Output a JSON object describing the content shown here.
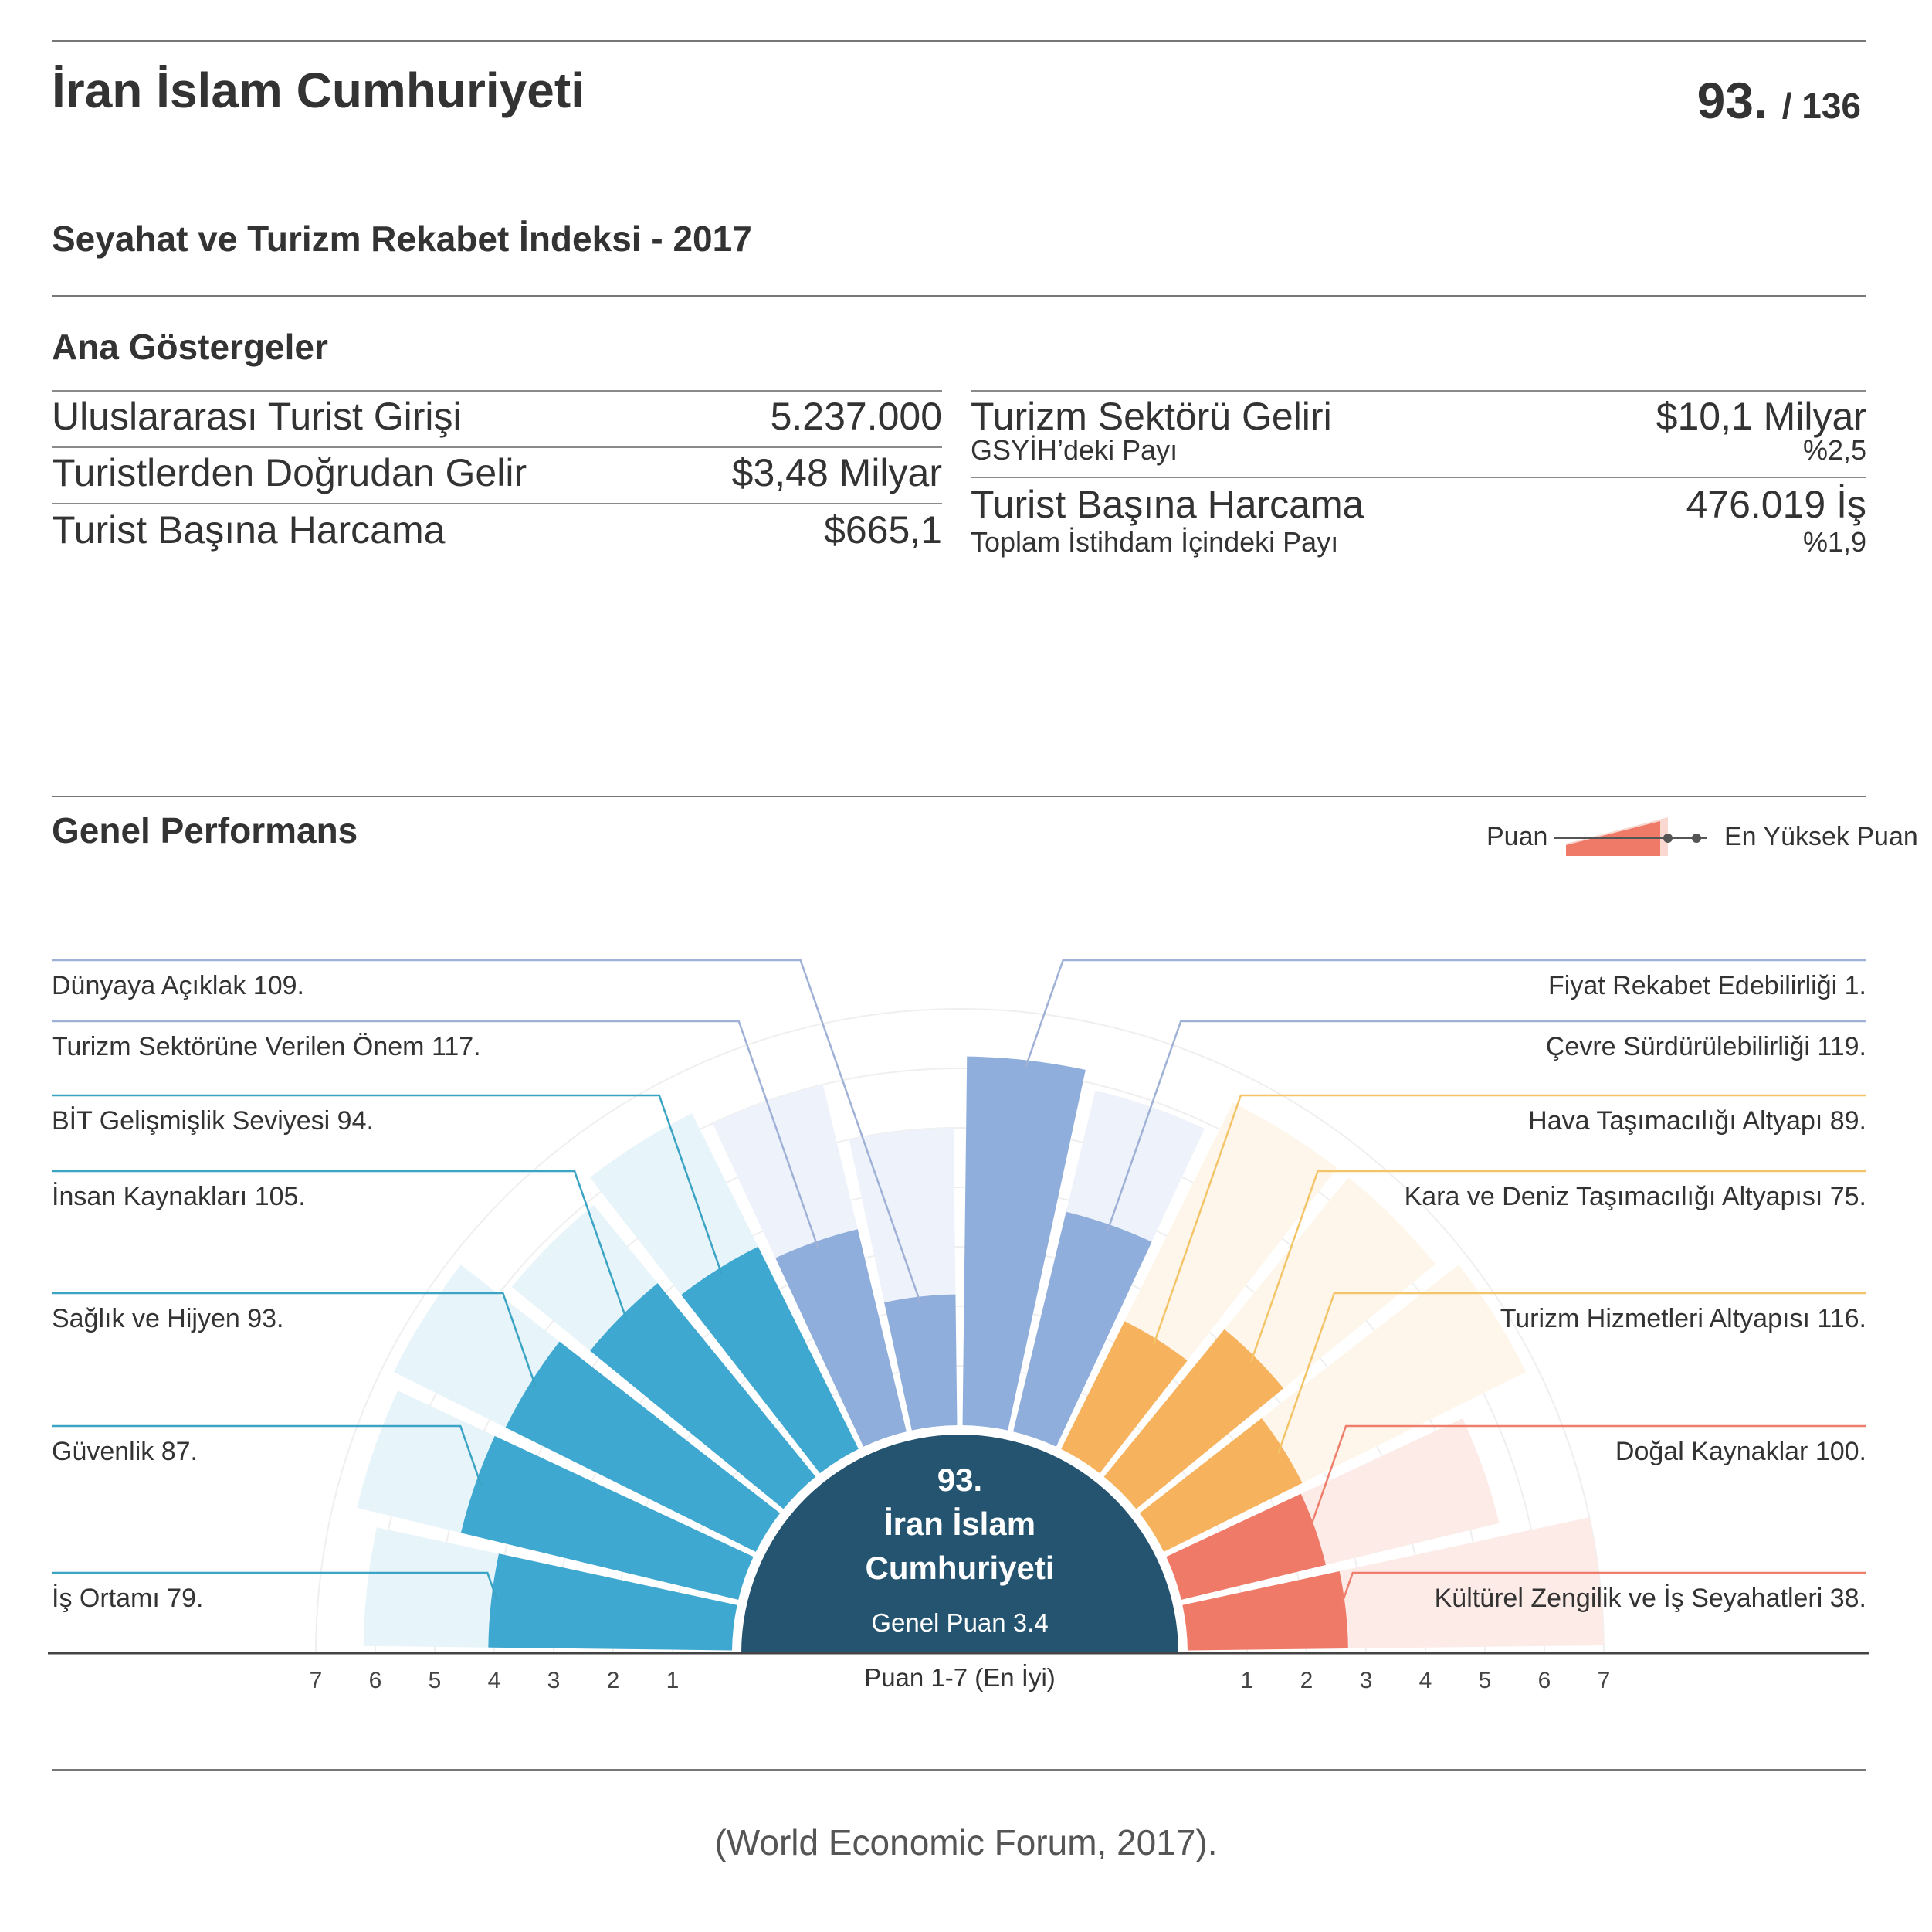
{
  "header": {
    "country": "İran İslam Cumhuriyeti",
    "rank": "93.",
    "rank_total": "/ 136",
    "index_title": "Seyahat ve Turizm Rekabet İndeksi - 2017"
  },
  "key_indicators": {
    "title": "Ana Göstergeler",
    "left": [
      {
        "label": "Uluslararası Turist Girişi",
        "value": "5.237.000"
      },
      {
        "label": "Turistlerden Doğrudan Gelir",
        "value": "$3,48 Milyar"
      },
      {
        "label": "Turist Başına Harcama",
        "value": "$665,1"
      }
    ],
    "right": [
      {
        "label": "Turizm Sektörü Geliri",
        "value": "$10,1 Milyar",
        "sub_label": "GSYİH’deki Payı",
        "sub_value": "%2,5"
      },
      {
        "label": "Turist Başına Harcama",
        "value": "476.019 İş",
        "sub_label": "Toplam İstihdam İçindeki Payı",
        "sub_value": "%1,9"
      }
    ]
  },
  "performance": {
    "title": "Genel Performans",
    "legend_score": "Puan",
    "legend_max": "En Yüksek Puan"
  },
  "chart_data": {
    "type": "radial-bar",
    "scale_min": 1,
    "scale_max": 7,
    "axis_ticks": [
      "7",
      "6",
      "5",
      "4",
      "3",
      "2",
      "1",
      "1",
      "2",
      "3",
      "4",
      "5",
      "6",
      "7"
    ],
    "axis_label": "Puan 1-7 (En İyi)",
    "center": {
      "rank": "93.",
      "name_line1": "İran İslam",
      "name_line2": "Cumhuriyeti",
      "score": "Genel Puan 3.4"
    },
    "colors": {
      "blue": "#3fa8d1",
      "periwinkle": "#90aedb",
      "orange": "#f6b25c",
      "red": "#f07a68",
      "center": "#24546f"
    },
    "pillars": [
      {
        "label": "İş Ortamı 79.",
        "score": 4.1,
        "max": 6.2,
        "color": "blue"
      },
      {
        "label": "Güvenlik 87.",
        "score": 4.8,
        "max": 6.6,
        "color": "blue"
      },
      {
        "label": "Sağlık ve Hijyen 93.",
        "score": 4.7,
        "max": 6.8,
        "color": "blue"
      },
      {
        "label": "İnsan Kaynakları 105.",
        "score": 4.2,
        "max": 5.9,
        "color": "blue"
      },
      {
        "label": "BİT Gelişmişlik Seviyesi 94.",
        "score": 3.8,
        "max": 6.3,
        "color": "blue"
      },
      {
        "label": "Turizm Sektörüne Verilen Önem 117.",
        "score": 3.5,
        "max": 6.0,
        "color": "periwinkle"
      },
      {
        "label": "Dünyaya Açıklak 109.",
        "score": 2.2,
        "max": 5.0,
        "color": "periwinkle"
      },
      {
        "label": "Fiyat Rekabet Edebilirliği 1.",
        "score": 6.2,
        "max": 6.2,
        "color": "periwinkle"
      },
      {
        "label": "Çevre Sürdürülebilirliği 119.",
        "score": 3.8,
        "max": 5.9,
        "color": "periwinkle"
      },
      {
        "label": "Hava Taşımacılığı Altyapı 89.",
        "score": 2.4,
        "max": 6.5,
        "color": "orange"
      },
      {
        "label": "Kara ve Deniz Taşımacılığı Altyapısı 75.",
        "score": 3.2,
        "max": 6.5,
        "color": "orange"
      },
      {
        "label": "Turizm Hizmetleri Altyapısı 116.",
        "score": 2.6,
        "max": 6.8,
        "color": "orange"
      },
      {
        "label": "Doğal Kaynaklar 100.",
        "score": 2.5,
        "max": 5.5,
        "color": "red"
      },
      {
        "label": "Kültürel Zengilik ve İş Seyahatleri 38.",
        "score": 2.7,
        "max": 7.0,
        "color": "red"
      }
    ]
  },
  "footer": {
    "source": "(World Economic Forum, 2017)."
  }
}
